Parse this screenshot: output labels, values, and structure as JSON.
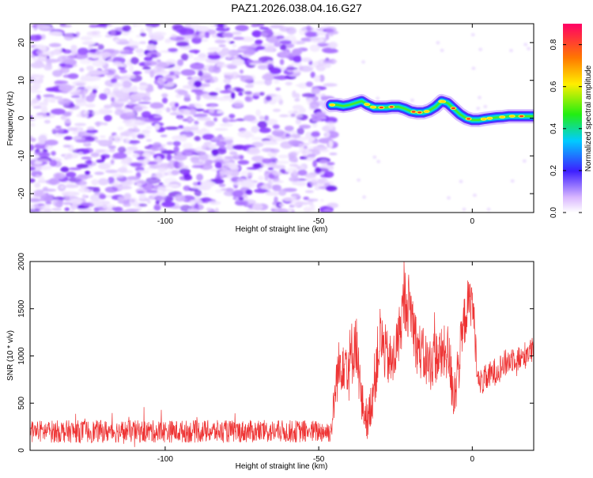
{
  "title": "PAZ1.2026.038.04.16.G27",
  "chart_data": [
    {
      "type": "heatmap",
      "title": "PAZ1.2026.038.04.16.G27",
      "xlabel": "Height of straight line (km)",
      "ylabel": "Frequency (Hz)",
      "xlim": [
        -144,
        20
      ],
      "ylim": [
        -25,
        25
      ],
      "xticks": [
        -100,
        -50,
        0
      ],
      "yticks": [
        -20,
        -10,
        0,
        10,
        20
      ],
      "noise_region_x": [
        -144,
        -46
      ],
      "signal_path": {
        "x": [
          -46,
          -44,
          -42,
          -40,
          -38,
          -36,
          -34,
          -32,
          -30,
          -28,
          -26,
          -24,
          -22,
          -20,
          -18,
          -16,
          -14,
          -12,
          -10,
          -8,
          -6,
          -4,
          -2,
          0,
          2,
          4,
          6,
          8,
          10,
          12,
          14,
          16,
          18,
          20
        ],
        "y": [
          3.5,
          3.5,
          3.2,
          3.5,
          4.0,
          4.5,
          3.5,
          2.8,
          2.8,
          2.8,
          3.0,
          3.0,
          2.5,
          1.8,
          1.5,
          1.5,
          2.0,
          3.0,
          4.5,
          4.0,
          2.5,
          1.0,
          0.0,
          -0.5,
          -0.5,
          -0.2,
          0.0,
          0.2,
          0.3,
          0.5,
          0.5,
          0.5,
          0.5,
          0.5
        ]
      },
      "colorbar": {
        "label": "Normalized spectral amplitude",
        "range": [
          0.0,
          0.9
        ],
        "ticks": [
          0.0,
          0.2,
          0.4,
          0.6,
          0.8
        ],
        "tick_labels": [
          "0.0",
          "0.2",
          "0.4",
          "0.6",
          "0.8"
        ]
      }
    },
    {
      "type": "line",
      "xlabel": "Height of straight line (km)",
      "ylabel": "SNR (10 * v/v)",
      "xlim": [
        -144,
        20
      ],
      "ylim": [
        0,
        2000
      ],
      "xticks": [
        -100,
        -50,
        0
      ],
      "yticks": [
        0,
        500,
        1000,
        1500,
        2000
      ],
      "color": "#ee3333",
      "envelope": {
        "x": [
          -144,
          -46,
          -44,
          -42,
          -40,
          -38,
          -36,
          -34,
          -32,
          -30,
          -28,
          -26,
          -24,
          -22,
          -20,
          -18,
          -16,
          -14,
          -12,
          -10,
          -8,
          -6,
          -4,
          -2,
          0,
          2,
          4,
          6,
          8,
          10,
          12,
          14,
          16,
          18,
          20
        ],
        "center": [
          200,
          200,
          800,
          1000,
          900,
          1200,
          500,
          300,
          700,
          1200,
          1000,
          900,
          1200,
          1600,
          1500,
          1100,
          1000,
          900,
          1000,
          1000,
          1050,
          600,
          1000,
          1500,
          1600,
          700,
          750,
          800,
          850,
          900,
          950,
          1000,
          950,
          1050,
          1050
        ],
        "spread": [
          120,
          120,
          300,
          350,
          400,
          350,
          250,
          200,
          300,
          350,
          300,
          300,
          300,
          350,
          350,
          300,
          300,
          300,
          300,
          300,
          300,
          350,
          300,
          300,
          250,
          150,
          150,
          150,
          150,
          150,
          150,
          150,
          150,
          150,
          150
        ]
      }
    }
  ]
}
